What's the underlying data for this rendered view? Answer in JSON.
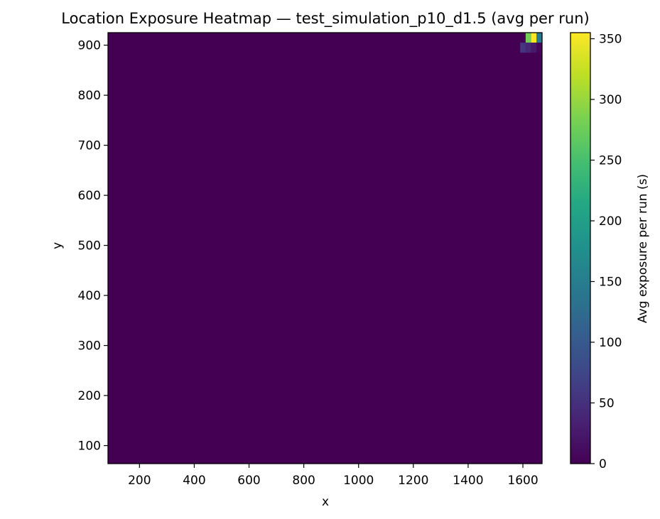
{
  "chart_data": {
    "type": "heatmap",
    "title": "Location Exposure Heatmap — test_simulation_p10_d1.5 (avg per run)",
    "xlabel": "x",
    "ylabel": "y",
    "xlim": [
      85,
      1670
    ],
    "ylim": [
      64,
      925
    ],
    "x_ticks": [
      200,
      400,
      600,
      800,
      1000,
      1200,
      1400,
      1600
    ],
    "y_ticks": [
      100,
      200,
      300,
      400,
      500,
      600,
      700,
      800,
      900
    ],
    "colormap": "viridis",
    "background_value": 0,
    "colorbar": {
      "label": "Avg exposure per run (s)",
      "range": [
        0,
        355
      ],
      "ticks": [
        0,
        50,
        100,
        150,
        200,
        250,
        300,
        350
      ]
    },
    "cells": [
      {
        "x0": 1610,
        "x1": 1630,
        "y0": 905,
        "y1": 925,
        "value": 280
      },
      {
        "x0": 1630,
        "x1": 1650,
        "y0": 905,
        "y1": 925,
        "value": 355
      },
      {
        "x0": 1650,
        "x1": 1670,
        "y0": 905,
        "y1": 925,
        "value": 140
      },
      {
        "x0": 1590,
        "x1": 1610,
        "y0": 885,
        "y1": 905,
        "value": 55
      },
      {
        "x0": 1610,
        "x1": 1630,
        "y0": 885,
        "y1": 905,
        "value": 40
      },
      {
        "x0": 1630,
        "x1": 1650,
        "y0": 885,
        "y1": 905,
        "value": 25
      },
      {
        "x0": 1650,
        "x1": 1670,
        "y0": 885,
        "y1": 905,
        "value": 5
      }
    ]
  }
}
